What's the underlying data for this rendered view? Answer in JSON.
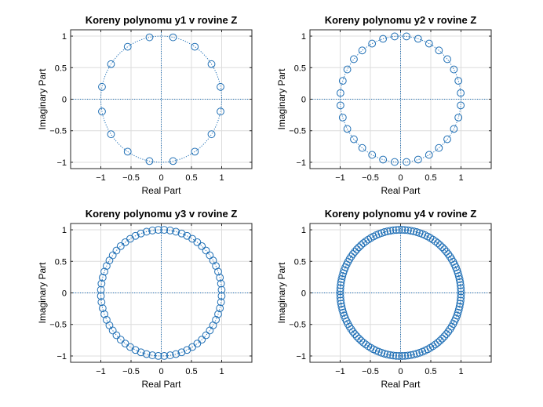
{
  "colors": {
    "marker": "#1f6fb5",
    "unit_circle": "#1f6fb5",
    "grid": "#dcdcdc",
    "axis_box": "#262626"
  },
  "chart_data": [
    {
      "type": "scatter",
      "title": "Koreny polynomu y1 v rovine Z",
      "xlabel": "Real Part",
      "ylabel": "Imaginary Part",
      "xlim": [
        -1.5,
        1.5
      ],
      "ylim": [
        -1.1,
        1.1
      ],
      "xticks": [
        -1,
        -0.5,
        0,
        0.5,
        1
      ],
      "yticks": [
        -1,
        -0.5,
        0,
        0.5,
        1
      ],
      "grid": true,
      "unit_circle": true,
      "marker": "circle",
      "roots": {
        "count": 16,
        "radius": 1,
        "angle_offset_deg": 11.25
      }
    },
    {
      "type": "scatter",
      "title": "Koreny polynomu y2 v rovine Z",
      "xlabel": "Real Part",
      "ylabel": "Imaginary Part",
      "xlim": [
        -1.5,
        1.5
      ],
      "ylim": [
        -1.1,
        1.1
      ],
      "xticks": [
        -1,
        -0.5,
        0,
        0.5,
        1
      ],
      "yticks": [
        -1,
        -0.5,
        0,
        0.5,
        1
      ],
      "grid": true,
      "unit_circle": true,
      "marker": "circle",
      "roots": {
        "count": 32,
        "radius": 1,
        "angle_offset_deg": 5.625
      }
    },
    {
      "type": "scatter",
      "title": "Koreny polynomu y3 v rovine Z",
      "xlabel": "Real Part",
      "ylabel": "Imaginary Part",
      "xlim": [
        -1.5,
        1.5
      ],
      "ylim": [
        -1.1,
        1.1
      ],
      "xticks": [
        -1,
        -0.5,
        0,
        0.5,
        1
      ],
      "yticks": [
        -1,
        -0.5,
        0,
        0.5,
        1
      ],
      "grid": true,
      "unit_circle": true,
      "marker": "circle",
      "roots": {
        "count": 64,
        "radius": 1,
        "angle_offset_deg": 2.8125
      }
    },
    {
      "type": "scatter",
      "title": "Koreny polynomu y4 v rovine Z",
      "xlabel": "Real Part",
      "ylabel": "Imaginary Part",
      "xlim": [
        -1.5,
        1.5
      ],
      "ylim": [
        -1.1,
        1.1
      ],
      "xticks": [
        -1,
        -0.5,
        0,
        0.5,
        1
      ],
      "yticks": [
        -1,
        -0.5,
        0,
        0.5,
        1
      ],
      "grid": true,
      "unit_circle": true,
      "marker": "circle",
      "roots": {
        "count": 128,
        "radius": 1,
        "angle_offset_deg": 1.40625
      }
    }
  ]
}
